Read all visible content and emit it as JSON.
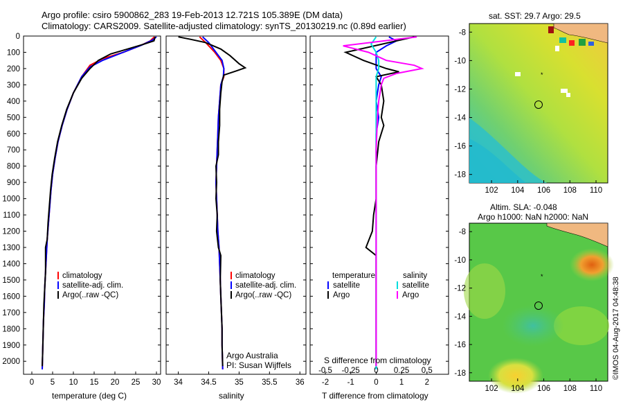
{
  "header": {
    "title_line1": "Argo profile: csiro 5900862_283 19-Feb-2013 12.721S 105.389E (DM data)",
    "title_line2": "Climatology: CARS2009. Satellite-adjusted climatology: synTS_20130219.nc (0.89d earlier)"
  },
  "maps": {
    "sst_title": "sat. SST: 29.7 Argo: 29.5",
    "sla_title_line1": "Altim. SLA: -0.048",
    "sla_title_line2": "Argo h1000: NaN h2000: NaN",
    "x_ticks": [
      "102",
      "104",
      "106",
      "108",
      "110"
    ],
    "y_ticks": [
      "-8",
      "-10",
      "-12",
      "-14",
      "-16",
      "-18"
    ],
    "argo_position": {
      "lon": 105.389,
      "lat": -12.721
    }
  },
  "footer": {
    "imos_stamp": "©IMOS 04-Aug-2017 04:48:38"
  },
  "chart_data": [
    {
      "type": "line",
      "panel": "temperature",
      "xlabel": "temperature (deg C)",
      "ylabel": "",
      "xlim": [
        -2,
        31
      ],
      "ylim": [
        2080,
        0
      ],
      "x_ticks": [
        "0",
        "5",
        "10",
        "15",
        "20",
        "25",
        "30"
      ],
      "y_ticks": [
        "0",
        "100",
        "200",
        "300",
        "400",
        "500",
        "600",
        "700",
        "800",
        "900",
        "1000",
        "1100",
        "1200",
        "1300",
        "1400",
        "1500",
        "1600",
        "1700",
        "1800",
        "1900",
        "2000"
      ],
      "legend": [
        "climatology",
        "satellite-adj. clim.",
        "Argo(..raw -QC)"
      ],
      "series": [
        {
          "name": "climatology",
          "color": "#ff0000",
          "points": [
            [
              29.5,
              5
            ],
            [
              28.5,
              30
            ],
            [
              26,
              60
            ],
            [
              22,
              100
            ],
            [
              17,
              140
            ],
            [
              14,
              180
            ],
            [
              12,
              250
            ],
            [
              10,
              350
            ],
            [
              8.5,
              450
            ],
            [
              7.3,
              550
            ],
            [
              6.3,
              650
            ],
            [
              5.6,
              750
            ],
            [
              5,
              850
            ],
            [
              4.6,
              950
            ],
            [
              4.3,
              1050
            ],
            [
              4,
              1150
            ],
            [
              3.7,
              1250
            ],
            [
              3.5,
              1350
            ],
            [
              3.3,
              1450
            ],
            [
              3.1,
              1550
            ],
            [
              3,
              1650
            ],
            [
              2.8,
              1750
            ],
            [
              2.7,
              1850
            ],
            [
              2.6,
              1950
            ],
            [
              2.5,
              2050
            ]
          ]
        },
        {
          "name": "satellite-adj. clim.",
          "color": "#0000ff",
          "points": [
            [
              30,
              5
            ],
            [
              29,
              25
            ],
            [
              26.5,
              55
            ],
            [
              22,
              100
            ],
            [
              17,
              150
            ],
            [
              14,
              190
            ],
            [
              12,
              250
            ],
            [
              10,
              350
            ],
            [
              8.5,
              450
            ],
            [
              7.3,
              550
            ],
            [
              6.3,
              650
            ],
            [
              5.6,
              750
            ],
            [
              5,
              850
            ],
            [
              4.6,
              950
            ],
            [
              4.3,
              1050
            ],
            [
              4,
              1150
            ],
            [
              3.7,
              1250
            ],
            [
              3.5,
              1350
            ],
            [
              3.3,
              1450
            ],
            [
              3.1,
              1550
            ],
            [
              3,
              1650
            ],
            [
              2.8,
              1750
            ],
            [
              2.7,
              1850
            ],
            [
              2.6,
              1950
            ],
            [
              2.5,
              2050
            ]
          ]
        },
        {
          "name": "Argo(..raw -QC)",
          "color": "#000000",
          "points": [
            [
              29.7,
              5
            ],
            [
              29.4,
              30
            ],
            [
              27,
              50
            ],
            [
              23,
              80
            ],
            [
              19,
              110
            ],
            [
              16,
              150
            ],
            [
              14,
              200
            ],
            [
              12,
              260
            ],
            [
              10,
              350
            ],
            [
              8.4,
              450
            ],
            [
              7.2,
              550
            ],
            [
              6.2,
              650
            ],
            [
              5.5,
              750
            ],
            [
              4.9,
              850
            ],
            [
              4.5,
              950
            ],
            [
              4.2,
              1050
            ],
            [
              3.9,
              1150
            ],
            [
              3.7,
              1250
            ],
            [
              3.3,
              1300
            ],
            [
              3.3,
              1450
            ],
            [
              3.1,
              1550
            ],
            [
              2.9,
              1650
            ],
            [
              2.8,
              1750
            ],
            [
              2.7,
              1850
            ],
            [
              2.6,
              1950
            ],
            [
              2.5,
              2030
            ]
          ]
        }
      ]
    },
    {
      "type": "line",
      "panel": "salinity",
      "xlabel": "salinity",
      "ylabel": "",
      "xlim": [
        33.8,
        36.1
      ],
      "ylim": [
        2080,
        0
      ],
      "x_ticks": [
        "34",
        "34.5",
        "35",
        "35.5",
        "36"
      ],
      "legend": [
        "climatology",
        "satellite-adj. clim.",
        "Argo(..raw -QC)"
      ],
      "annotation": [
        "Argo Australia",
        "PI: Susan Wijffels"
      ],
      "series": [
        {
          "name": "climatology",
          "color": "#ff0000",
          "points": [
            [
              34.35,
              5
            ],
            [
              34.45,
              40
            ],
            [
              34.6,
              100
            ],
            [
              34.7,
              150
            ],
            [
              34.75,
              200
            ],
            [
              34.75,
              250
            ],
            [
              34.7,
              300
            ],
            [
              34.68,
              400
            ],
            [
              34.66,
              500
            ],
            [
              34.65,
              600
            ],
            [
              34.64,
              700
            ],
            [
              34.63,
              800
            ],
            [
              34.62,
              900
            ],
            [
              34.63,
              1000
            ],
            [
              34.64,
              1100
            ],
            [
              34.65,
              1200
            ],
            [
              34.67,
              1300
            ],
            [
              34.68,
              1400
            ],
            [
              34.69,
              1500
            ],
            [
              34.7,
              1600
            ],
            [
              34.71,
              1700
            ],
            [
              34.72,
              1800
            ],
            [
              34.72,
              1900
            ],
            [
              34.73,
              2050
            ]
          ]
        },
        {
          "name": "satellite-adj. clim.",
          "color": "#0000ff",
          "points": [
            [
              34.4,
              5
            ],
            [
              34.5,
              40
            ],
            [
              34.62,
              100
            ],
            [
              34.72,
              150
            ],
            [
              34.75,
              200
            ],
            [
              34.74,
              250
            ],
            [
              34.7,
              300
            ],
            [
              34.68,
              400
            ],
            [
              34.66,
              500
            ],
            [
              34.65,
              600
            ],
            [
              34.64,
              700
            ],
            [
              34.63,
              800
            ],
            [
              34.62,
              900
            ],
            [
              34.63,
              1000
            ],
            [
              34.64,
              1100
            ],
            [
              34.65,
              1200
            ],
            [
              34.67,
              1300
            ],
            [
              34.68,
              1400
            ],
            [
              34.69,
              1500
            ],
            [
              34.7,
              1600
            ],
            [
              34.71,
              1700
            ],
            [
              34.72,
              1800
            ],
            [
              34.72,
              1900
            ],
            [
              34.73,
              2050
            ]
          ]
        },
        {
          "name": "Argo(..raw -QC)",
          "color": "#000000",
          "points": [
            [
              34.0,
              5
            ],
            [
              34.2,
              20
            ],
            [
              34.45,
              40
            ],
            [
              34.7,
              80
            ],
            [
              34.85,
              120
            ],
            [
              35.0,
              170
            ],
            [
              35.1,
              195
            ],
            [
              34.95,
              215
            ],
            [
              34.75,
              240
            ],
            [
              34.72,
              280
            ],
            [
              34.7,
              350
            ],
            [
              34.68,
              450
            ],
            [
              34.68,
              550
            ],
            [
              34.66,
              650
            ],
            [
              34.66,
              730
            ],
            [
              34.62,
              800
            ],
            [
              34.63,
              900
            ],
            [
              34.62,
              1000
            ],
            [
              34.64,
              1100
            ],
            [
              34.63,
              1200
            ],
            [
              34.66,
              1300
            ],
            [
              34.7,
              1350
            ],
            [
              34.69,
              1500
            ],
            [
              34.7,
              1600
            ],
            [
              34.71,
              1700
            ],
            [
              34.72,
              1800
            ],
            [
              34.72,
              1900
            ],
            [
              34.73,
              2030
            ]
          ]
        }
      ]
    },
    {
      "type": "line",
      "panel": "difference",
      "xlabel": "T difference from climatology",
      "xlabel_top": "S difference from climatology",
      "xlim": [
        -2.6,
        2.85
      ],
      "ylim": [
        2080,
        0
      ],
      "x_ticks": [
        "-2",
        "-1",
        "0",
        "1",
        "2"
      ],
      "x_ticks_top": [
        "-0.5",
        "-0.25",
        "0",
        "0.25",
        "0.5"
      ],
      "legend_temperature_title": "temperature",
      "legend_salinity_title": "salinity",
      "legend_temperature": [
        "satellite",
        "Argo"
      ],
      "legend_salinity": [
        "satellite",
        "Argo"
      ],
      "series": [
        {
          "name": "satellite",
          "group": "temperature",
          "color": "#0000ff",
          "points": [
            [
              0.5,
              5
            ],
            [
              0.8,
              30
            ],
            [
              0.4,
              60
            ],
            [
              0,
              100
            ],
            [
              0,
              150
            ],
            [
              0,
              200
            ],
            [
              0.2,
              250
            ],
            [
              0.1,
              300
            ],
            [
              0,
              400
            ],
            [
              0.1,
              500
            ],
            [
              0,
              600
            ],
            [
              0,
              700
            ],
            [
              0,
              800
            ],
            [
              0,
              900
            ],
            [
              0,
              1000
            ],
            [
              0,
              1200
            ],
            [
              0,
              1400
            ],
            [
              0,
              1600
            ],
            [
              0,
              1800
            ],
            [
              0,
              2050
            ]
          ]
        },
        {
          "name": "Argo",
          "group": "temperature",
          "color": "#000000",
          "points": [
            [
              1.5,
              5
            ],
            [
              -1.2,
              100
            ],
            [
              -0.5,
              150
            ],
            [
              0.4,
              200
            ],
            [
              0.9,
              220
            ],
            [
              0,
              250
            ],
            [
              0.2,
              300
            ],
            [
              0.3,
              400
            ],
            [
              0.2,
              500
            ],
            [
              0.3,
              550
            ],
            [
              0.1,
              650
            ],
            [
              0,
              800
            ],
            [
              0,
              900
            ],
            [
              0,
              1000
            ],
            [
              -0.1,
              1100
            ],
            [
              -0.15,
              1200
            ],
            [
              -0.4,
              1300
            ],
            [
              0,
              1350
            ],
            [
              0,
              1500
            ],
            [
              0,
              1700
            ],
            [
              0,
              1900
            ],
            [
              0,
              2030
            ]
          ]
        },
        {
          "name": "satellite",
          "group": "salinity",
          "color": "#00dddd",
          "points": [
            [
              0,
              5
            ],
            [
              -0.2,
              50
            ],
            [
              0,
              100
            ],
            [
              0.1,
              150
            ],
            [
              0.1,
              200
            ],
            [
              0,
              250
            ],
            [
              0,
              350
            ],
            [
              0,
              500
            ],
            [
              0,
              700
            ],
            [
              0,
              900
            ],
            [
              0,
              1100
            ],
            [
              0,
              1400
            ],
            [
              0,
              1700
            ],
            [
              0,
              2050
            ]
          ]
        },
        {
          "name": "Argo",
          "group": "salinity",
          "color": "#ff00ff",
          "points": [
            [
              1.6,
              5
            ],
            [
              -1.3,
              60
            ],
            [
              -0.3,
              100
            ],
            [
              0.4,
              150
            ],
            [
              1.5,
              180
            ],
            [
              1.8,
              200
            ],
            [
              0.8,
              230
            ],
            [
              0.3,
              260
            ],
            [
              0.2,
              300
            ],
            [
              0.1,
              400
            ],
            [
              0.05,
              500
            ],
            [
              0,
              700
            ],
            [
              0,
              900
            ],
            [
              0,
              1100
            ],
            [
              0,
              1400
            ],
            [
              0,
              1700
            ],
            [
              0,
              2030
            ]
          ]
        }
      ]
    }
  ]
}
